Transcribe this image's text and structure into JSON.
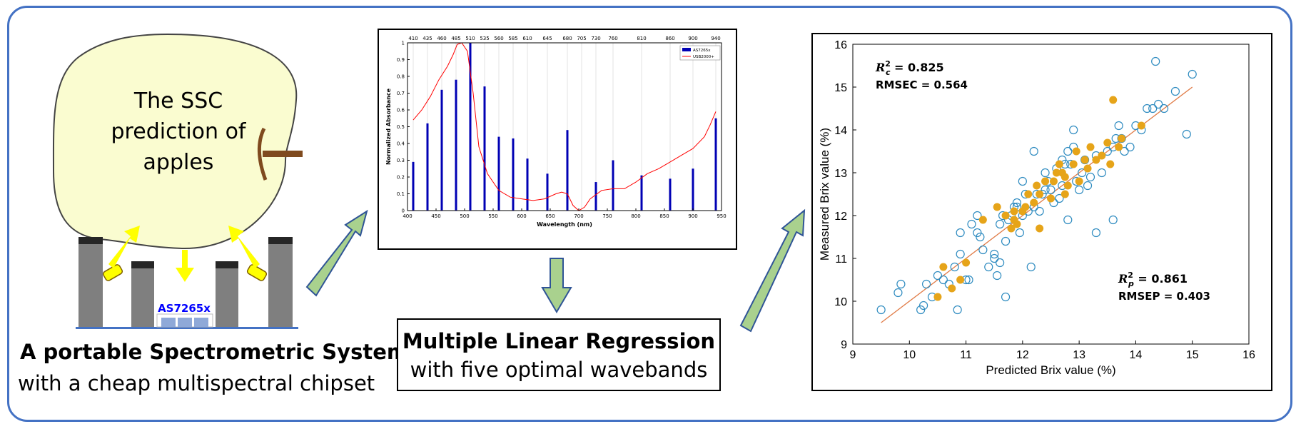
{
  "colors": {
    "frame": "#4472c4",
    "apple_fill": "#fafcd0",
    "apple_stem": "#7f4a1e",
    "led_yellow": "#ffff00",
    "pillar_gray": "#7f7f7f",
    "pillar_cap": "#262626",
    "chip_label": "#0000ff",
    "chip_cells": "#8fa9d8",
    "arrow_green": "#a9d18e",
    "arrow_outline": "#2f5496",
    "bar_blue": "#0000b4",
    "curve_red": "#ff0000",
    "cal_points": "#2e8bc0",
    "pred_points": "#e6a419",
    "fit_line": "#e07a45"
  },
  "apple": {
    "label": "The SSC prediction of apples"
  },
  "chip": {
    "label": "AS7265x"
  },
  "captions": {
    "system_title": "A portable Spectrometric System",
    "system_subtitle": "with a cheap multispectral chipset"
  },
  "mlr": {
    "title": "Multiple Linear Regression",
    "subtitle": "with five optimal wavebands"
  },
  "chart_data": [
    {
      "type": "bar",
      "ylabel": "Normalized Absorbance",
      "xlabel": "Wavelength (nm)",
      "xlim": [
        400,
        950
      ],
      "ylim": [
        0,
        1
      ],
      "xticks": [
        400,
        450,
        500,
        550,
        600,
        650,
        700,
        750,
        800,
        850,
        900,
        950
      ],
      "yticks": [
        0,
        0.1,
        0.2,
        0.3,
        0.4,
        0.5,
        0.6,
        0.7,
        0.8,
        0.9,
        1
      ],
      "top_ticks": [
        410,
        435,
        460,
        485,
        510,
        535,
        560,
        585,
        610,
        645,
        680,
        705,
        730,
        760,
        810,
        860,
        900,
        940
      ],
      "grid": true,
      "legend_position": "top-right",
      "series": [
        {
          "name": "AS7265x",
          "type": "bar",
          "x": [
            410,
            435,
            460,
            485,
            510,
            535,
            560,
            585,
            610,
            645,
            680,
            705,
            730,
            760,
            810,
            860,
            900,
            940
          ],
          "values": [
            0.29,
            0.52,
            0.72,
            0.78,
            1.0,
            0.74,
            0.44,
            0.43,
            0.31,
            0.22,
            0.48,
            0.0,
            0.17,
            0.3,
            0.21,
            0.19,
            0.25,
            0.55
          ]
        },
        {
          "name": "USB2000+",
          "type": "line",
          "x": [
            410,
            425,
            440,
            455,
            470,
            480,
            487,
            495,
            505,
            515,
            525,
            540,
            560,
            580,
            600,
            620,
            640,
            660,
            670,
            680,
            690,
            700,
            710,
            720,
            740,
            760,
            780,
            800,
            820,
            840,
            860,
            880,
            900,
            920,
            930,
            940
          ],
          "values": [
            0.54,
            0.6,
            0.68,
            0.78,
            0.86,
            0.93,
            0.99,
            1.0,
            0.95,
            0.7,
            0.38,
            0.22,
            0.12,
            0.08,
            0.07,
            0.06,
            0.07,
            0.1,
            0.11,
            0.1,
            0.03,
            0.0,
            0.02,
            0.07,
            0.12,
            0.13,
            0.13,
            0.17,
            0.22,
            0.25,
            0.29,
            0.33,
            0.37,
            0.44,
            0.51,
            0.59
          ]
        }
      ]
    },
    {
      "type": "scatter",
      "xlabel": "Predicted Brix value (%)",
      "ylabel": "Measured Brix value (%)",
      "xlim": [
        9,
        16
      ],
      "ylim": [
        9,
        16
      ],
      "xticks": [
        9,
        10,
        11,
        12,
        13,
        14,
        15,
        16
      ],
      "yticks": [
        9,
        10,
        11,
        12,
        13,
        14,
        15,
        16
      ],
      "fit_line": {
        "x": [
          9.5,
          15.0
        ],
        "y": [
          9.5,
          15.0
        ]
      },
      "annotations": {
        "cal_r2_base": "R",
        "cal_r2_sup": "2",
        "cal_r2_sub": "c",
        "cal_r2_value": " = 0.825",
        "cal_rmse": "RMSEC = 0.564",
        "pred_r2_base": "R",
        "pred_r2_sup": "2",
        "pred_r2_sub": "p",
        "pred_r2_value": " = 0.861",
        "pred_rmse": "RMSEP = 0.403"
      },
      "series": [
        {
          "type": "scatter",
          "marker": "open-circle",
          "x": [
            9.5,
            9.8,
            9.85,
            10.2,
            10.25,
            10.3,
            10.4,
            10.5,
            10.6,
            10.7,
            10.8,
            10.85,
            10.9,
            11.0,
            11.05,
            11.1,
            11.2,
            11.25,
            11.3,
            11.4,
            11.5,
            11.55,
            11.6,
            11.65,
            11.7,
            11.75,
            11.8,
            11.85,
            11.9,
            11.95,
            12.0,
            12.05,
            12.1,
            12.15,
            12.2,
            12.25,
            12.3,
            12.35,
            12.4,
            12.45,
            12.5,
            12.55,
            12.6,
            12.65,
            12.7,
            12.75,
            12.8,
            12.85,
            12.9,
            12.95,
            13.0,
            13.05,
            13.1,
            13.15,
            13.2,
            13.3,
            13.4,
            13.5,
            13.6,
            13.65,
            13.7,
            13.75,
            13.8,
            13.9,
            14.0,
            14.1,
            14.2,
            14.3,
            14.4,
            14.5,
            14.7,
            14.9,
            15.0,
            14.35,
            13.6,
            12.8,
            11.7,
            11.9,
            12.4,
            12.7,
            10.9,
            11.2,
            12.9,
            12.2,
            11.5,
            13.3,
            12.0,
            11.6
          ],
          "y": [
            9.8,
            10.2,
            10.4,
            9.8,
            9.9,
            10.4,
            10.1,
            10.6,
            10.5,
            10.4,
            10.8,
            9.8,
            11.1,
            10.5,
            10.5,
            11.8,
            11.6,
            11.5,
            11.2,
            10.8,
            11.1,
            10.6,
            10.9,
            12.0,
            11.4,
            11.9,
            12.0,
            12.2,
            12.3,
            11.6,
            12.0,
            12.5,
            12.1,
            10.8,
            12.2,
            12.5,
            12.1,
            12.5,
            13.0,
            12.8,
            12.6,
            12.3,
            13.1,
            12.4,
            12.7,
            13.2,
            13.5,
            13.2,
            14.0,
            12.8,
            12.6,
            13.0,
            13.3,
            12.7,
            12.9,
            13.4,
            13.0,
            13.5,
            13.6,
            13.8,
            14.1,
            13.8,
            13.5,
            13.6,
            14.1,
            14.0,
            14.5,
            14.5,
            14.6,
            14.5,
            14.9,
            13.9,
            15.3,
            15.6,
            11.9,
            11.9,
            10.1,
            12.2,
            12.6,
            13.3,
            11.6,
            12.0,
            13.6,
            13.5,
            11.0,
            11.6,
            12.8,
            11.8
          ],
          "name": ""
        },
        {
          "type": "scatter",
          "marker": "filled-circle",
          "x": [
            10.6,
            10.75,
            10.9,
            11.0,
            11.3,
            11.55,
            11.7,
            11.8,
            11.85,
            11.9,
            12.0,
            12.05,
            12.1,
            12.2,
            12.25,
            12.3,
            12.4,
            12.5,
            12.55,
            12.6,
            12.65,
            12.7,
            12.75,
            12.8,
            12.9,
            12.95,
            13.0,
            13.1,
            13.15,
            13.2,
            13.3,
            13.4,
            13.5,
            13.6,
            13.7,
            13.75,
            14.1,
            13.55,
            12.75,
            12.3,
            11.85,
            10.5
          ],
          "y": [
            10.8,
            10.3,
            10.5,
            10.9,
            11.9,
            12.2,
            12.0,
            11.7,
            12.1,
            11.8,
            12.1,
            12.2,
            12.5,
            12.3,
            12.7,
            12.5,
            12.8,
            12.4,
            12.8,
            13.0,
            13.2,
            13.0,
            12.9,
            12.7,
            13.2,
            13.5,
            12.8,
            13.3,
            13.1,
            13.6,
            13.3,
            13.4,
            13.7,
            14.7,
            13.6,
            13.8,
            14.1,
            13.2,
            12.5,
            11.7,
            11.9,
            10.1
          ],
          "name": ""
        }
      ]
    }
  ]
}
